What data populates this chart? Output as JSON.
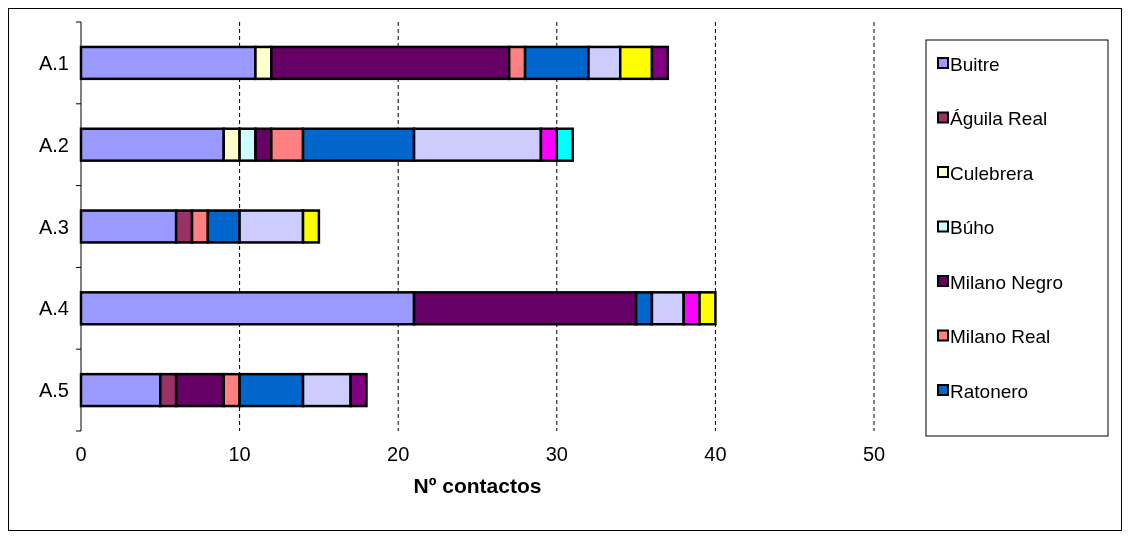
{
  "chart_data": {
    "type": "bar",
    "orientation": "horizontal",
    "stacked": true,
    "categories": [
      "A.1",
      "A.2",
      "A.3",
      "A.4",
      "A.5"
    ],
    "xlabel": "Nº contactos",
    "xlim": [
      0,
      50
    ],
    "xticks": [
      0,
      10,
      20,
      30,
      40,
      50
    ],
    "grid": "x",
    "legend": "right",
    "series": [
      {
        "name": "Buitre",
        "color": "#9999ff",
        "values": [
          11,
          9,
          6,
          21,
          5
        ]
      },
      {
        "name": "Águila Real",
        "color": "#993366",
        "values": [
          0,
          0,
          1,
          0,
          1
        ]
      },
      {
        "name": "Culebrera",
        "color": "#ffffcc",
        "values": [
          1,
          1,
          0,
          0,
          0
        ]
      },
      {
        "name": "Búho",
        "color": "#ccffff",
        "values": [
          0,
          1,
          0,
          0,
          0
        ]
      },
      {
        "name": "Milano Negro",
        "color": "#660066",
        "values": [
          15,
          1,
          0,
          14,
          3
        ]
      },
      {
        "name": "Milano Real",
        "color": "#ff8080",
        "values": [
          1,
          2,
          1,
          0,
          1
        ]
      },
      {
        "name": "Ratonero",
        "color": "#0066cc",
        "values": [
          4,
          7,
          2,
          1,
          4
        ]
      },
      {
        "color": "#ccccff",
        "values": [
          2,
          8,
          4,
          2,
          3
        ]
      },
      {
        "color": "#ff00ff",
        "values": [
          0,
          1,
          0,
          1,
          0
        ]
      },
      {
        "color": "#ffff00",
        "values": [
          2,
          0,
          1,
          1,
          0
        ]
      },
      {
        "color": "#00ffff",
        "values": [
          0,
          1,
          0,
          0,
          0
        ]
      },
      {
        "color": "#800080",
        "values": [
          1,
          0,
          0,
          0,
          1
        ]
      }
    ]
  }
}
